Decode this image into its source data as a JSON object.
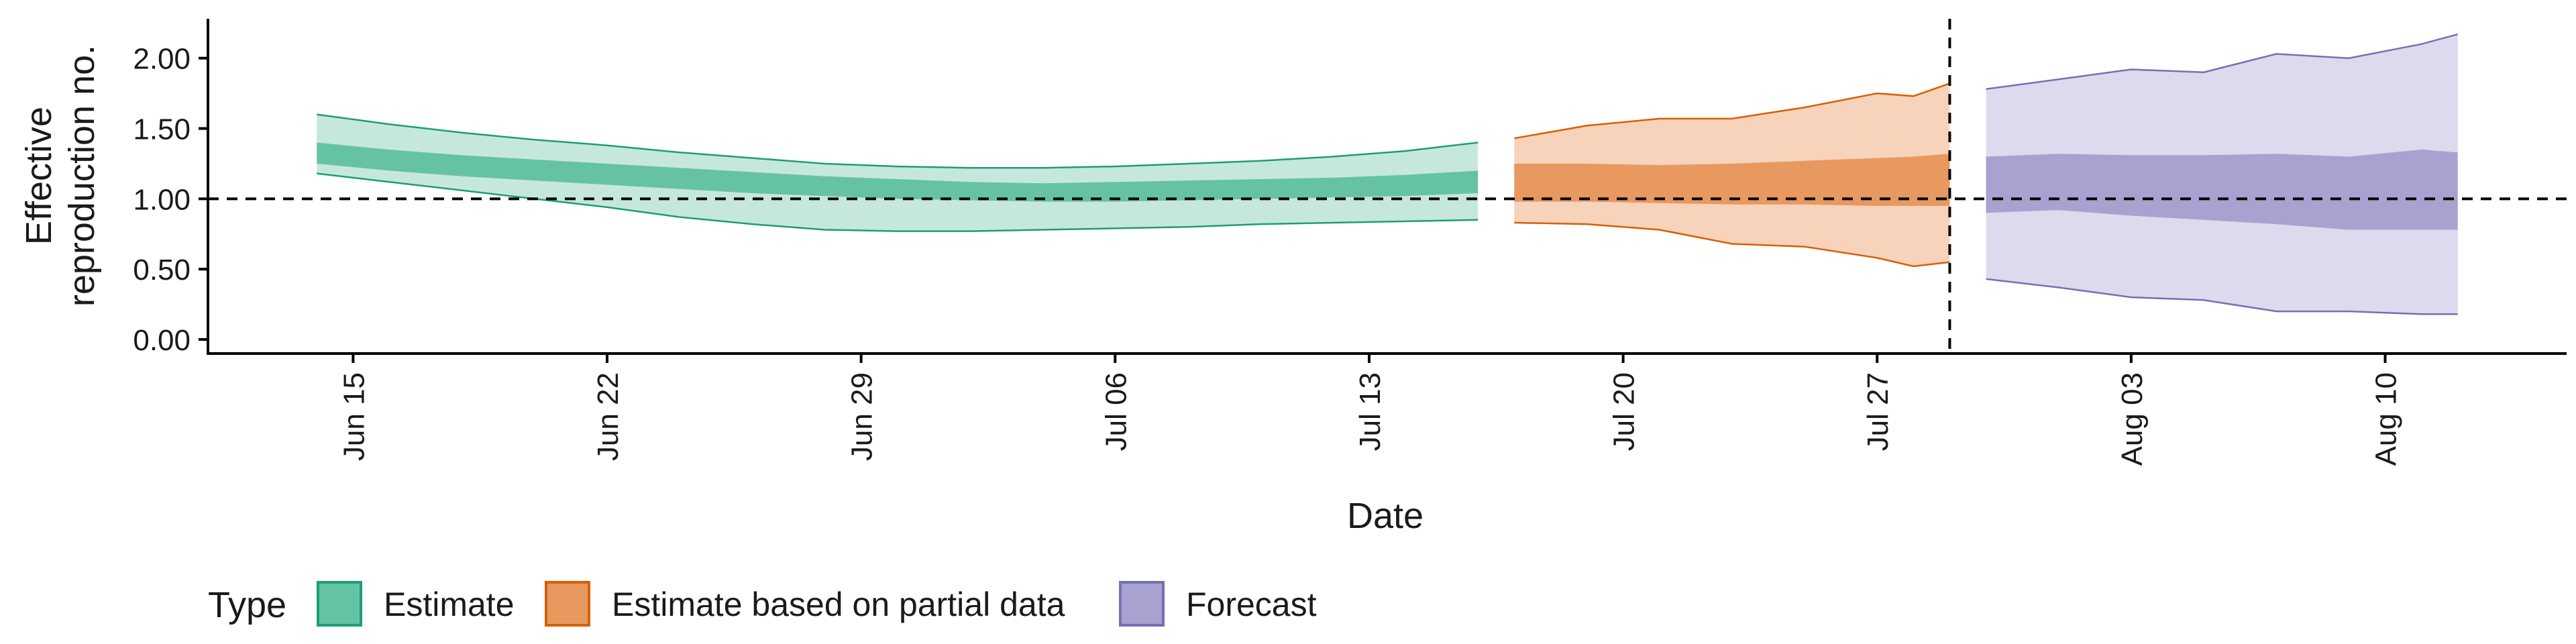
{
  "chart_data": {
    "type": "area",
    "title": "",
    "xlabel": "Date",
    "ylabel_lines": [
      "Effective",
      "reproduction no."
    ],
    "x_ticks": [
      "2020-06-15",
      "2020-06-22",
      "2020-06-29",
      "2020-07-06",
      "2020-07-13",
      "2020-07-20",
      "2020-07-27",
      "2020-08-03",
      "2020-08-10"
    ],
    "x_tick_labels": [
      "Jun 15",
      "Jun 22",
      "Jun 29",
      "Jul 06",
      "Jul 13",
      "Jul 20",
      "Jul 27",
      "Aug 03",
      "Aug 10"
    ],
    "xlim": [
      "2020-06-11",
      "2020-08-15"
    ],
    "y_ticks": [
      0,
      0.5,
      1,
      1.5,
      2
    ],
    "y_tick_labels": [
      "0.00",
      "0.50",
      "1.00",
      "1.50",
      "2.00"
    ],
    "ylim": [
      -0.1,
      2.28
    ],
    "reference_line_y": 1.0,
    "vertical_reference_date": "2020-07-29",
    "grid": false,
    "legend": {
      "title": "Type",
      "placement": "bottom-left",
      "entries": [
        "Estimate",
        "Estimate based on partial data",
        "Forecast"
      ]
    },
    "series": [
      {
        "name": "Estimate",
        "fill_inner": "#66C2A5",
        "fill_outer": "#C6E8DC",
        "stroke": "#1B9E77",
        "x": [
          "2020-06-14",
          "2020-06-16",
          "2020-06-18",
          "2020-06-20",
          "2020-06-22",
          "2020-06-24",
          "2020-06-26",
          "2020-06-28",
          "2020-06-30",
          "2020-07-02",
          "2020-07-04",
          "2020-07-06",
          "2020-07-08",
          "2020-07-10",
          "2020-07-12",
          "2020-07-14",
          "2020-07-16"
        ],
        "outer_upper": [
          1.6,
          1.53,
          1.47,
          1.42,
          1.38,
          1.33,
          1.29,
          1.25,
          1.23,
          1.22,
          1.22,
          1.23,
          1.25,
          1.27,
          1.3,
          1.34,
          1.4
        ],
        "outer_lower": [
          1.18,
          1.12,
          1.06,
          1.0,
          0.94,
          0.87,
          0.82,
          0.78,
          0.77,
          0.77,
          0.78,
          0.79,
          0.8,
          0.82,
          0.83,
          0.84,
          0.85
        ],
        "inner_upper": [
          1.4,
          1.35,
          1.31,
          1.28,
          1.25,
          1.22,
          1.19,
          1.16,
          1.14,
          1.12,
          1.11,
          1.12,
          1.13,
          1.14,
          1.15,
          1.17,
          1.2
        ],
        "inner_lower": [
          1.25,
          1.2,
          1.16,
          1.13,
          1.1,
          1.07,
          1.04,
          1.02,
          1.0,
          0.99,
          0.98,
          0.98,
          0.99,
          1.0,
          1.01,
          1.02,
          1.04
        ]
      },
      {
        "name": "Estimate based on partial data",
        "fill_inner": "#E7995F",
        "fill_outer": "#F6D3BA",
        "stroke": "#D95F02",
        "x": [
          "2020-07-17",
          "2020-07-19",
          "2020-07-21",
          "2020-07-23",
          "2020-07-25",
          "2020-07-27",
          "2020-07-28",
          "2020-07-29"
        ],
        "outer_upper": [
          1.43,
          1.52,
          1.57,
          1.57,
          1.65,
          1.75,
          1.73,
          1.82
        ],
        "outer_lower": [
          0.83,
          0.82,
          0.78,
          0.68,
          0.66,
          0.58,
          0.52,
          0.55
        ],
        "inner_upper": [
          1.25,
          1.25,
          1.24,
          1.25,
          1.27,
          1.29,
          1.3,
          1.32
        ],
        "inner_lower": [
          0.98,
          0.98,
          0.97,
          0.96,
          0.96,
          0.95,
          0.95,
          0.95
        ]
      },
      {
        "name": "Forecast",
        "fill_inner": "#A7A2CF",
        "fill_outer": "#DCDAEC",
        "stroke": "#7570B3",
        "x": [
          "2020-07-30",
          "2020-08-01",
          "2020-08-03",
          "2020-08-05",
          "2020-08-07",
          "2020-08-09",
          "2020-08-11",
          "2020-08-12"
        ],
        "outer_upper": [
          1.78,
          1.85,
          1.92,
          1.9,
          2.03,
          2.0,
          2.1,
          2.17
        ],
        "outer_lower": [
          0.43,
          0.37,
          0.3,
          0.28,
          0.2,
          0.2,
          0.18,
          0.18
        ],
        "inner_upper": [
          1.3,
          1.32,
          1.31,
          1.31,
          1.32,
          1.3,
          1.35,
          1.33
        ],
        "inner_lower": [
          0.9,
          0.92,
          0.88,
          0.85,
          0.82,
          0.78,
          0.78,
          0.78
        ]
      }
    ]
  }
}
